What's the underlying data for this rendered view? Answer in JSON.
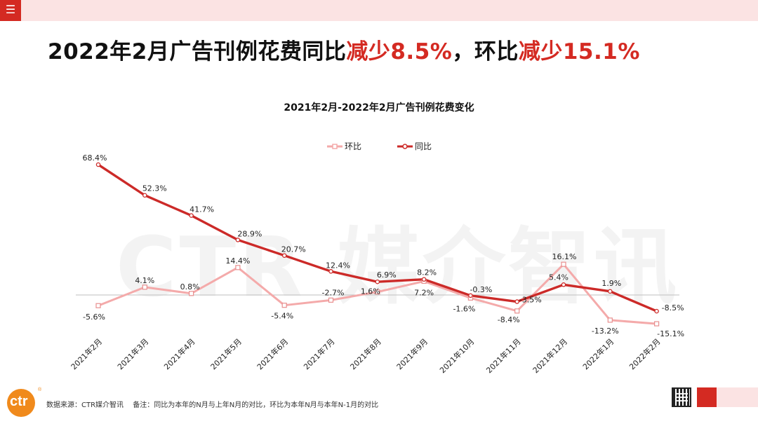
{
  "headline": {
    "part1": "2022年2月广告刊例花费同比",
    "hl1": "减少8.5%",
    "part2": "，环比",
    "hl2": "减少15.1%"
  },
  "watermark": "CTR 媒介智讯",
  "chart_data": {
    "type": "line",
    "title": "2021年2月-2022年2月广告刊例花费变化",
    "categories": [
      "2021年2月",
      "2021年3月",
      "2021年4月",
      "2021年5月",
      "2021年6月",
      "2021年7月",
      "2021年8月",
      "2021年9月",
      "2021年10月",
      "2021年11月",
      "2021年12月",
      "2022年1月",
      "2022年2月"
    ],
    "series": [
      {
        "name": "环比",
        "color": "#f4aaaa",
        "values": [
          -5.6,
          4.1,
          0.8,
          14.4,
          -5.4,
          -2.7,
          1.6,
          7.2,
          -1.6,
          -8.4,
          16.1,
          -13.2,
          -15.1
        ],
        "labels": [
          "-5.6%",
          "4.1%",
          "0.8%",
          "14.4%",
          "-5.4%",
          "-2.7%",
          "1.6%",
          "7.2%",
          "-1.6%",
          "-8.4%",
          "16.1%",
          "-13.2%",
          "-15.1%"
        ]
      },
      {
        "name": "同比",
        "color": "#cc2a28",
        "values": [
          68.4,
          52.3,
          41.7,
          28.9,
          20.7,
          12.4,
          6.9,
          8.2,
          -0.3,
          -3.5,
          5.4,
          1.9,
          -8.5
        ],
        "labels": [
          "68.4%",
          "52.3%",
          "41.7%",
          "28.9%",
          "20.7%",
          "12.4%",
          "6.9%",
          "8.2%",
          "-0.3%",
          "-3.5%",
          "5.4%",
          "1.9%",
          "-8.5%"
        ]
      }
    ],
    "xlabel": "",
    "ylabel": "",
    "ylim": [
      -20,
      75
    ],
    "legend": "top-center",
    "grid": false
  },
  "footer": {
    "source": "数据来源：CTR媒介智讯",
    "note": "备注：同比为本年的N月与上年N月的对比，环比为本年N月与本年N-1月的对比"
  },
  "logo_text": "ctr",
  "logo_reg": "®",
  "menu_icon": "☰",
  "colors": {
    "brand_red": "#d42a22",
    "accent_pink": "#fbe3e3",
    "logo_orange": "#f08a1c"
  }
}
